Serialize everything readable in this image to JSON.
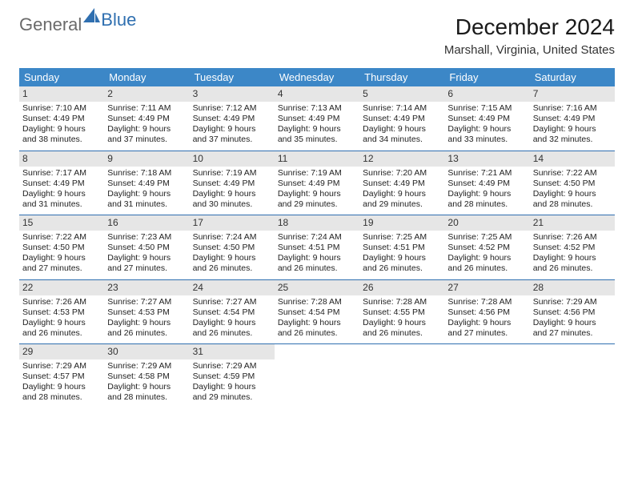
{
  "logo": {
    "text_general": "General",
    "text_blue": "Blue"
  },
  "header": {
    "month_title": "December 2024",
    "location": "Marshall, Virginia, United States"
  },
  "colors": {
    "header_bg": "#3c87c7",
    "header_text": "#ffffff",
    "rule": "#2f6fb0",
    "daynum_bg": "#e6e6e6",
    "body_text": "#222222",
    "logo_blue": "#2f6fb0",
    "logo_gray": "#6a6a6a"
  },
  "day_labels": [
    "Sunday",
    "Monday",
    "Tuesday",
    "Wednesday",
    "Thursday",
    "Friday",
    "Saturday"
  ],
  "days": [
    {
      "n": "1",
      "sr": "7:10 AM",
      "ss": "4:49 PM",
      "dl": "9 hours and 38 minutes."
    },
    {
      "n": "2",
      "sr": "7:11 AM",
      "ss": "4:49 PM",
      "dl": "9 hours and 37 minutes."
    },
    {
      "n": "3",
      "sr": "7:12 AM",
      "ss": "4:49 PM",
      "dl": "9 hours and 37 minutes."
    },
    {
      "n": "4",
      "sr": "7:13 AM",
      "ss": "4:49 PM",
      "dl": "9 hours and 35 minutes."
    },
    {
      "n": "5",
      "sr": "7:14 AM",
      "ss": "4:49 PM",
      "dl": "9 hours and 34 minutes."
    },
    {
      "n": "6",
      "sr": "7:15 AM",
      "ss": "4:49 PM",
      "dl": "9 hours and 33 minutes."
    },
    {
      "n": "7",
      "sr": "7:16 AM",
      "ss": "4:49 PM",
      "dl": "9 hours and 32 minutes."
    },
    {
      "n": "8",
      "sr": "7:17 AM",
      "ss": "4:49 PM",
      "dl": "9 hours and 31 minutes."
    },
    {
      "n": "9",
      "sr": "7:18 AM",
      "ss": "4:49 PM",
      "dl": "9 hours and 31 minutes."
    },
    {
      "n": "10",
      "sr": "7:19 AM",
      "ss": "4:49 PM",
      "dl": "9 hours and 30 minutes."
    },
    {
      "n": "11",
      "sr": "7:19 AM",
      "ss": "4:49 PM",
      "dl": "9 hours and 29 minutes."
    },
    {
      "n": "12",
      "sr": "7:20 AM",
      "ss": "4:49 PM",
      "dl": "9 hours and 29 minutes."
    },
    {
      "n": "13",
      "sr": "7:21 AM",
      "ss": "4:49 PM",
      "dl": "9 hours and 28 minutes."
    },
    {
      "n": "14",
      "sr": "7:22 AM",
      "ss": "4:50 PM",
      "dl": "9 hours and 28 minutes."
    },
    {
      "n": "15",
      "sr": "7:22 AM",
      "ss": "4:50 PM",
      "dl": "9 hours and 27 minutes."
    },
    {
      "n": "16",
      "sr": "7:23 AM",
      "ss": "4:50 PM",
      "dl": "9 hours and 27 minutes."
    },
    {
      "n": "17",
      "sr": "7:24 AM",
      "ss": "4:50 PM",
      "dl": "9 hours and 26 minutes."
    },
    {
      "n": "18",
      "sr": "7:24 AM",
      "ss": "4:51 PM",
      "dl": "9 hours and 26 minutes."
    },
    {
      "n": "19",
      "sr": "7:25 AM",
      "ss": "4:51 PM",
      "dl": "9 hours and 26 minutes."
    },
    {
      "n": "20",
      "sr": "7:25 AM",
      "ss": "4:52 PM",
      "dl": "9 hours and 26 minutes."
    },
    {
      "n": "21",
      "sr": "7:26 AM",
      "ss": "4:52 PM",
      "dl": "9 hours and 26 minutes."
    },
    {
      "n": "22",
      "sr": "7:26 AM",
      "ss": "4:53 PM",
      "dl": "9 hours and 26 minutes."
    },
    {
      "n": "23",
      "sr": "7:27 AM",
      "ss": "4:53 PM",
      "dl": "9 hours and 26 minutes."
    },
    {
      "n": "24",
      "sr": "7:27 AM",
      "ss": "4:54 PM",
      "dl": "9 hours and 26 minutes."
    },
    {
      "n": "25",
      "sr": "7:28 AM",
      "ss": "4:54 PM",
      "dl": "9 hours and 26 minutes."
    },
    {
      "n": "26",
      "sr": "7:28 AM",
      "ss": "4:55 PM",
      "dl": "9 hours and 26 minutes."
    },
    {
      "n": "27",
      "sr": "7:28 AM",
      "ss": "4:56 PM",
      "dl": "9 hours and 27 minutes."
    },
    {
      "n": "28",
      "sr": "7:29 AM",
      "ss": "4:56 PM",
      "dl": "9 hours and 27 minutes."
    },
    {
      "n": "29",
      "sr": "7:29 AM",
      "ss": "4:57 PM",
      "dl": "9 hours and 28 minutes."
    },
    {
      "n": "30",
      "sr": "7:29 AM",
      "ss": "4:58 PM",
      "dl": "9 hours and 28 minutes."
    },
    {
      "n": "31",
      "sr": "7:29 AM",
      "ss": "4:59 PM",
      "dl": "9 hours and 29 minutes."
    }
  ],
  "labels": {
    "sunrise_prefix": "Sunrise: ",
    "sunset_prefix": "Sunset: ",
    "daylight_prefix": "Daylight: "
  }
}
